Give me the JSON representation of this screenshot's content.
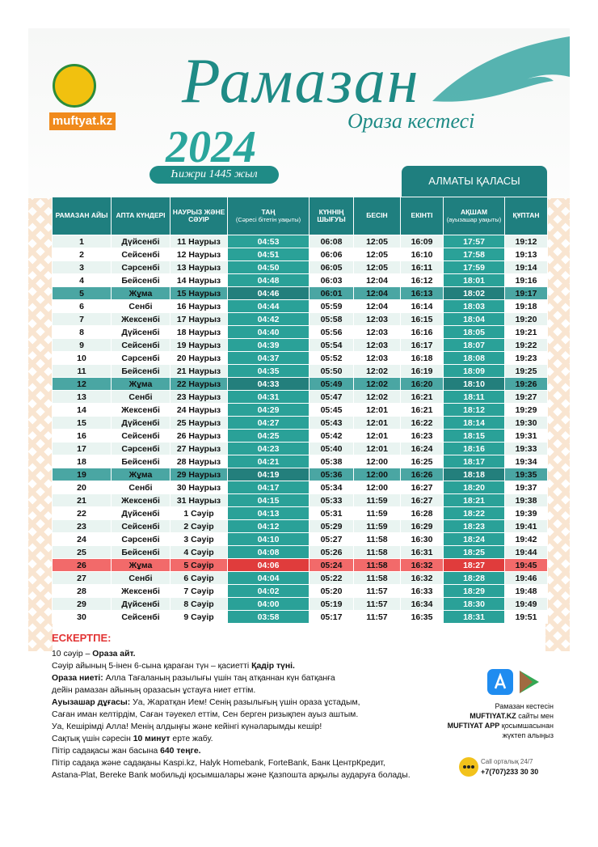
{
  "header": {
    "title": "Рамазан",
    "subtitle": "Ораза кестесі",
    "year": "2024",
    "hijri": "Һижри 1445 жыл",
    "city": "АЛМАТЫ ҚАЛАСЫ"
  },
  "logo": {
    "site": "muftyat.kz"
  },
  "table": {
    "columns": [
      {
        "title": "РАМАЗАН АЙЫ"
      },
      {
        "title": "АПТА КҮНДЕРІ"
      },
      {
        "title": "НАУРЫЗ ЖӘНЕ СӘУІР"
      },
      {
        "title": "ТАҢ",
        "sub": "(Сәресі бітетін уақыты)"
      },
      {
        "title": "КҮННІҢ ШЫҒУЫ"
      },
      {
        "title": "БЕСІН"
      },
      {
        "title": "ЕКІНТІ"
      },
      {
        "title": "АҚШАМ",
        "sub": "(ауызашар уақыты)"
      },
      {
        "title": "ҚҰПТАН"
      }
    ],
    "rows": [
      [
        "1",
        "Дүйсенбі",
        "11 Наурыз",
        "04:53",
        "06:08",
        "12:05",
        "16:09",
        "17:57",
        "19:12"
      ],
      [
        "2",
        "Сейсенбі",
        "12 Наурыз",
        "04:51",
        "06:06",
        "12:05",
        "16:10",
        "17:58",
        "19:13"
      ],
      [
        "3",
        "Сәрсенбі",
        "13 Наурыз",
        "04:50",
        "06:05",
        "12:05",
        "16:11",
        "17:59",
        "19:14"
      ],
      [
        "4",
        "Бейсенбі",
        "14 Наурыз",
        "04:48",
        "06:03",
        "12:04",
        "16:12",
        "18:01",
        "19:16"
      ],
      [
        "5",
        "Жұма",
        "15 Наурыз",
        "04:46",
        "06:01",
        "12:04",
        "16:13",
        "18:02",
        "19:17"
      ],
      [
        "6",
        "Сенбі",
        "16 Наурыз",
        "04:44",
        "05:59",
        "12:04",
        "16:14",
        "18:03",
        "19:18"
      ],
      [
        "7",
        "Жексенбі",
        "17 Наурыз",
        "04:42",
        "05:58",
        "12:03",
        "16:15",
        "18:04",
        "19:20"
      ],
      [
        "8",
        "Дүйсенбі",
        "18 Наурыз",
        "04:40",
        "05:56",
        "12:03",
        "16:16",
        "18:05",
        "19:21"
      ],
      [
        "9",
        "Сейсенбі",
        "19 Наурыз",
        "04:39",
        "05:54",
        "12:03",
        "16:17",
        "18:07",
        "19:22"
      ],
      [
        "10",
        "Сәрсенбі",
        "20 Наурыз",
        "04:37",
        "05:52",
        "12:03",
        "16:18",
        "18:08",
        "19:23"
      ],
      [
        "11",
        "Бейсенбі",
        "21 Наурыз",
        "04:35",
        "05:50",
        "12:02",
        "16:19",
        "18:09",
        "19:25"
      ],
      [
        "12",
        "Жұма",
        "22 Наурыз",
        "04:33",
        "05:49",
        "12:02",
        "16:20",
        "18:10",
        "19:26"
      ],
      [
        "13",
        "Сенбі",
        "23 Наурыз",
        "04:31",
        "05:47",
        "12:02",
        "16:21",
        "18:11",
        "19:27"
      ],
      [
        "14",
        "Жексенбі",
        "24 Наурыз",
        "04:29",
        "05:45",
        "12:01",
        "16:21",
        "18:12",
        "19:29"
      ],
      [
        "15",
        "Дүйсенбі",
        "25 Наурыз",
        "04:27",
        "05:43",
        "12:01",
        "16:22",
        "18:14",
        "19:30"
      ],
      [
        "16",
        "Сейсенбі",
        "26 Наурыз",
        "04:25",
        "05:42",
        "12:01",
        "16:23",
        "18:15",
        "19:31"
      ],
      [
        "17",
        "Сәрсенбі",
        "27 Наурыз",
        "04:23",
        "05:40",
        "12:01",
        "16:24",
        "18:16",
        "19:33"
      ],
      [
        "18",
        "Бейсенбі",
        "28 Наурыз",
        "04:21",
        "05:38",
        "12:00",
        "16:25",
        "18:17",
        "19:34"
      ],
      [
        "19",
        "Жұма",
        "29 Наурыз",
        "04:19",
        "05:36",
        "12:00",
        "16:26",
        "18:18",
        "19:35"
      ],
      [
        "20",
        "Сенбі",
        "30 Наурыз",
        "04:17",
        "05:34",
        "12:00",
        "16:27",
        "18:20",
        "19:37"
      ],
      [
        "21",
        "Жексенбі",
        "31 Наурыз",
        "04:15",
        "05:33",
        "11:59",
        "16:27",
        "18:21",
        "19:38"
      ],
      [
        "22",
        "Дүйсенбі",
        "1 Сәуір",
        "04:13",
        "05:31",
        "11:59",
        "16:28",
        "18:22",
        "19:39"
      ],
      [
        "23",
        "Сейсенбі",
        "2 Сәуір",
        "04:12",
        "05:29",
        "11:59",
        "16:29",
        "18:23",
        "19:41"
      ],
      [
        "24",
        "Сәрсенбі",
        "3 Сәуір",
        "04:10",
        "05:27",
        "11:58",
        "16:30",
        "18:24",
        "19:42"
      ],
      [
        "25",
        "Бейсенбі",
        "4 Сәуір",
        "04:08",
        "05:26",
        "11:58",
        "16:31",
        "18:25",
        "19:44"
      ],
      [
        "26",
        "Жұма",
        "5 Сәуір",
        "04:06",
        "05:24",
        "11:58",
        "16:32",
        "18:27",
        "19:45"
      ],
      [
        "27",
        "Сенбі",
        "6 Сәуір",
        "04:04",
        "05:22",
        "11:58",
        "16:32",
        "18:28",
        "19:46"
      ],
      [
        "28",
        "Жексенбі",
        "7 Сәуір",
        "04:02",
        "05:20",
        "11:57",
        "16:33",
        "18:29",
        "19:48"
      ],
      [
        "29",
        "Дүйсенбі",
        "8 Сәуір",
        "04:00",
        "05:19",
        "11:57",
        "16:34",
        "18:30",
        "19:49"
      ],
      [
        "30",
        "Сейсенбі",
        "9 Сәуір",
        "03:58",
        "05:17",
        "11:57",
        "16:35",
        "18:31",
        "19:51"
      ]
    ]
  },
  "notes": {
    "title": "ЕСКЕРТПЕ:",
    "lines": [
      [
        {
          "text": "10 сәуір – "
        },
        {
          "text": "Ораза айт.",
          "bold": true
        }
      ],
      [
        {
          "text": "Сәуір айының 5-інен 6-сына қараған түн – қасиетті "
        },
        {
          "text": "Қадір түні.",
          "bold": true
        }
      ],
      [
        {
          "text": "Ораза ниеті:",
          "bold": true
        },
        {
          "text": " Алла Тағаланың разылығы үшін таң атқаннан күн батқанға"
        }
      ],
      [
        {
          "text": "дейін рамазан айының оразасын ұстауға ниет еттім."
        }
      ],
      [
        {
          "text": "Ауызашар дұғасы:",
          "bold": true
        },
        {
          "text": " Уа, Жаратқан Ием! Сенің разылығың үшін ораза ұстадым,"
        }
      ],
      [
        {
          "text": "Саған иман келтірдім, Саған тәуекел еттім, Сен берген ризықпен ауыз аштым."
        }
      ],
      [
        {
          "text": "Уа, Кешірімді Алла! Менің алдыңғы және кейінгі күнәларымды кешір!"
        }
      ],
      [
        {
          "text": "Сақтық үшін сәресін "
        },
        {
          "text": "10 минут",
          "bold": true
        },
        {
          "text": " ерте жабу."
        }
      ],
      [
        {
          "text": "Пітір садақасы жан басына "
        },
        {
          "text": "640 теңге.",
          "bold": true
        }
      ],
      [
        {
          "text": "Пітір садақа және садақаны Kaspi.kz, Halyk Homebank, ForteBank, Банк ЦентрКредит,"
        }
      ],
      [
        {
          "text": "Astana-Plat, Bereke Bank мобильді қосымшалары және Қазпошта арқылы аударуға болады."
        }
      ]
    ]
  },
  "app": {
    "lines": [
      [
        {
          "text": "Рамазан кестесін"
        }
      ],
      [
        {
          "text": "MUFTIYAT.KZ",
          "bold": true
        },
        {
          "text": " сайты мен"
        }
      ],
      [
        {
          "text": "MUFTIYAT APP",
          "bold": true
        },
        {
          "text": " қосымшасынан"
        }
      ],
      [
        {
          "text": "жүктеп алыңыз"
        }
      ]
    ]
  },
  "call": {
    "label": "Call орталық 24/7",
    "phone": "+7(707)233 30 30"
  }
}
